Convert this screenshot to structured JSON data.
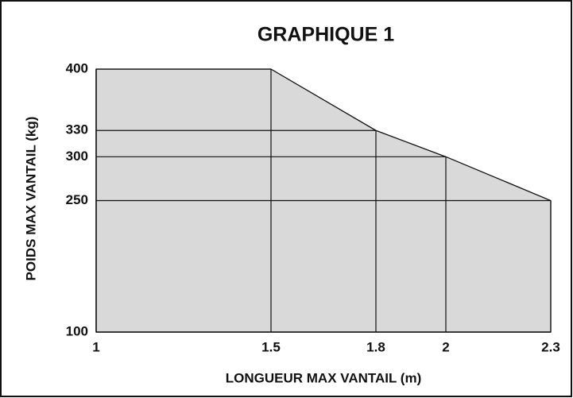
{
  "chart_data": {
    "type": "area",
    "title": "GRAPHIQUE  1",
    "x_label": "LONGUEUR MAX VANTAIL (m)",
    "y_label": "POIDS MAX VANTAIL (kg)",
    "x": [
      1,
      1.5,
      1.8,
      2,
      2.3
    ],
    "values": [
      400,
      400,
      330,
      300,
      250
    ],
    "color": "#d9d9d9",
    "xlim": [
      1,
      2.3
    ],
    "xticks": [
      1,
      1.5,
      1.8,
      2,
      2.3
    ],
    "ylim": [
      100,
      400
    ],
    "yticks": [
      100,
      250,
      300,
      330,
      400
    ],
    "grid": true
  }
}
